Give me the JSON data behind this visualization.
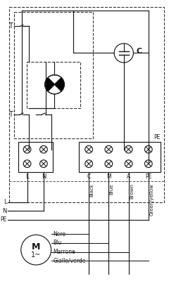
{
  "bg_color": "#ffffff",
  "line_color": "#1a1a1a",
  "terminal_labels_left": [
    "L",
    "N"
  ],
  "terminal_labels_right": [
    "C",
    "M",
    "A",
    "PE"
  ],
  "input_labels": [
    "L",
    "N",
    "PE"
  ],
  "cap_label": "C",
  "pe_label": "PE",
  "wire_labels_en": [
    "Black",
    "Blue",
    "Brown",
    "Green/yellow"
  ],
  "wire_labels_it": [
    "Nero",
    "Blu",
    "Marrone",
    "Giallo/verde"
  ],
  "motor_label": "M",
  "motor_sub": "1~"
}
